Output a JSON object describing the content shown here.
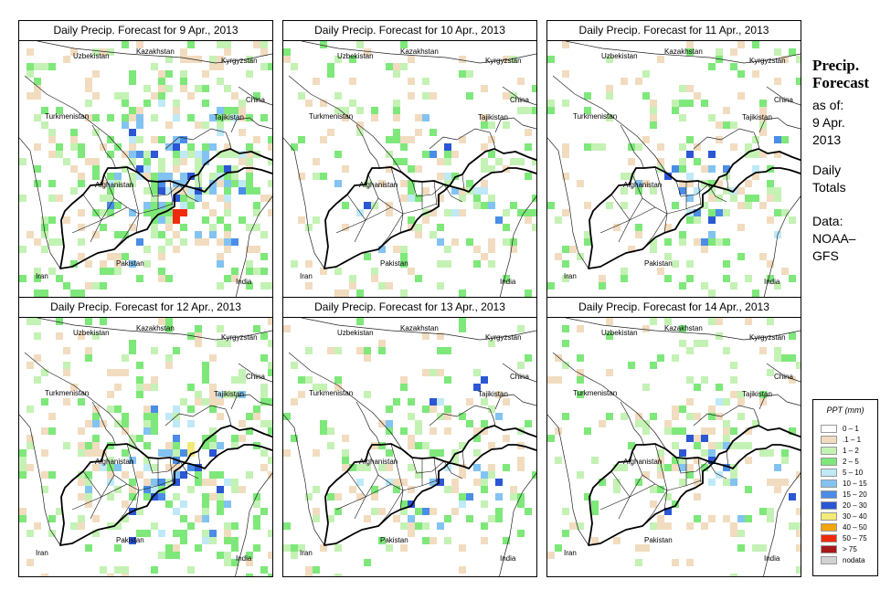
{
  "panels": [
    {
      "title": "Daily Precip. Forecast for  9 Apr., 2013",
      "seed": 3,
      "density": 0.55,
      "intensity": 1.0
    },
    {
      "title": "Daily Precip. Forecast for  10 Apr., 2013",
      "seed": 7,
      "density": 0.28,
      "intensity": 0.4
    },
    {
      "title": "Daily Precip. Forecast for  11 Apr., 2013",
      "seed": 11,
      "density": 0.3,
      "intensity": 0.6
    },
    {
      "title": "Daily Precip. Forecast for  12 Apr., 2013",
      "seed": 17,
      "density": 0.45,
      "intensity": 0.9
    },
    {
      "title": "Daily Precip. Forecast for  13 Apr., 2013",
      "seed": 23,
      "density": 0.3,
      "intensity": 0.5
    },
    {
      "title": "Daily Precip. Forecast for  14 Apr., 2013",
      "seed": 29,
      "density": 0.3,
      "intensity": 0.55
    }
  ],
  "map_labels": {
    "uzbekistan": "Uzbekistan",
    "kazakhstan": "Kazakhstan",
    "kyrgyzstan": "Kyrgyzstan",
    "china": "China",
    "turkmenistan": "Turkmenistan",
    "tajikistan": "Tajikistan",
    "afghanistan": "Afghanistan",
    "pakistan": "Pakistan",
    "iran": "Iran",
    "india": "India"
  },
  "side": {
    "title1": "Precip.",
    "title2": "Forecast",
    "as_of": "as of:",
    "date1": "9 Apr.",
    "date2": "2013",
    "daily": "Daily",
    "totals": "Totals",
    "data_label": "Data:",
    "src1": "NOAA–",
    "src2": "GFS"
  },
  "legend": {
    "title": "PPT (mm)",
    "items": [
      {
        "label": "0 – 1",
        "color": "#ffffff"
      },
      {
        "label": ".1 – 1",
        "color": "#f2dcc0"
      },
      {
        "label": "1 – 2",
        "color": "#c4f2b4"
      },
      {
        "label": "2 – 5",
        "color": "#7ee87a"
      },
      {
        "label": "5 – 10",
        "color": "#bfe9f7"
      },
      {
        "label": "10 – 15",
        "color": "#82c3f2"
      },
      {
        "label": "15 – 20",
        "color": "#4b8de6"
      },
      {
        "label": "20 – 30",
        "color": "#2b56d4"
      },
      {
        "label": "30 – 40",
        "color": "#f3ea78"
      },
      {
        "label": "40 – 50",
        "color": "#f2a50e"
      },
      {
        "label": "50 – 75",
        "color": "#f02a0c"
      },
      {
        "label": "> 75",
        "color": "#a81818"
      },
      {
        "label": "nodata",
        "color": "#d2d2d2"
      }
    ]
  }
}
